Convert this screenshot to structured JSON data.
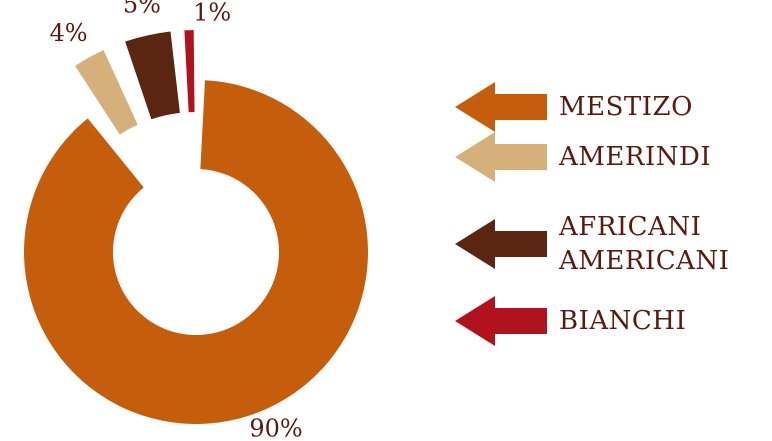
{
  "chart_data": {
    "type": "pie",
    "title": "",
    "slices": [
      {
        "label": "MESTIZO",
        "value": 90,
        "value_label": "90%",
        "color": "#c45e0c"
      },
      {
        "label": "AMERINDI",
        "value": 4,
        "value_label": "4%",
        "color": "#d5b07a"
      },
      {
        "label": "AFRICANI\nAMERICANI",
        "value": 5,
        "value_label": "5%",
        "color": "#5a2612"
      },
      {
        "label": "BIANCHI",
        "value": 1,
        "value_label": "1%",
        "color": "#b0121e"
      }
    ],
    "legend_position": "right"
  }
}
